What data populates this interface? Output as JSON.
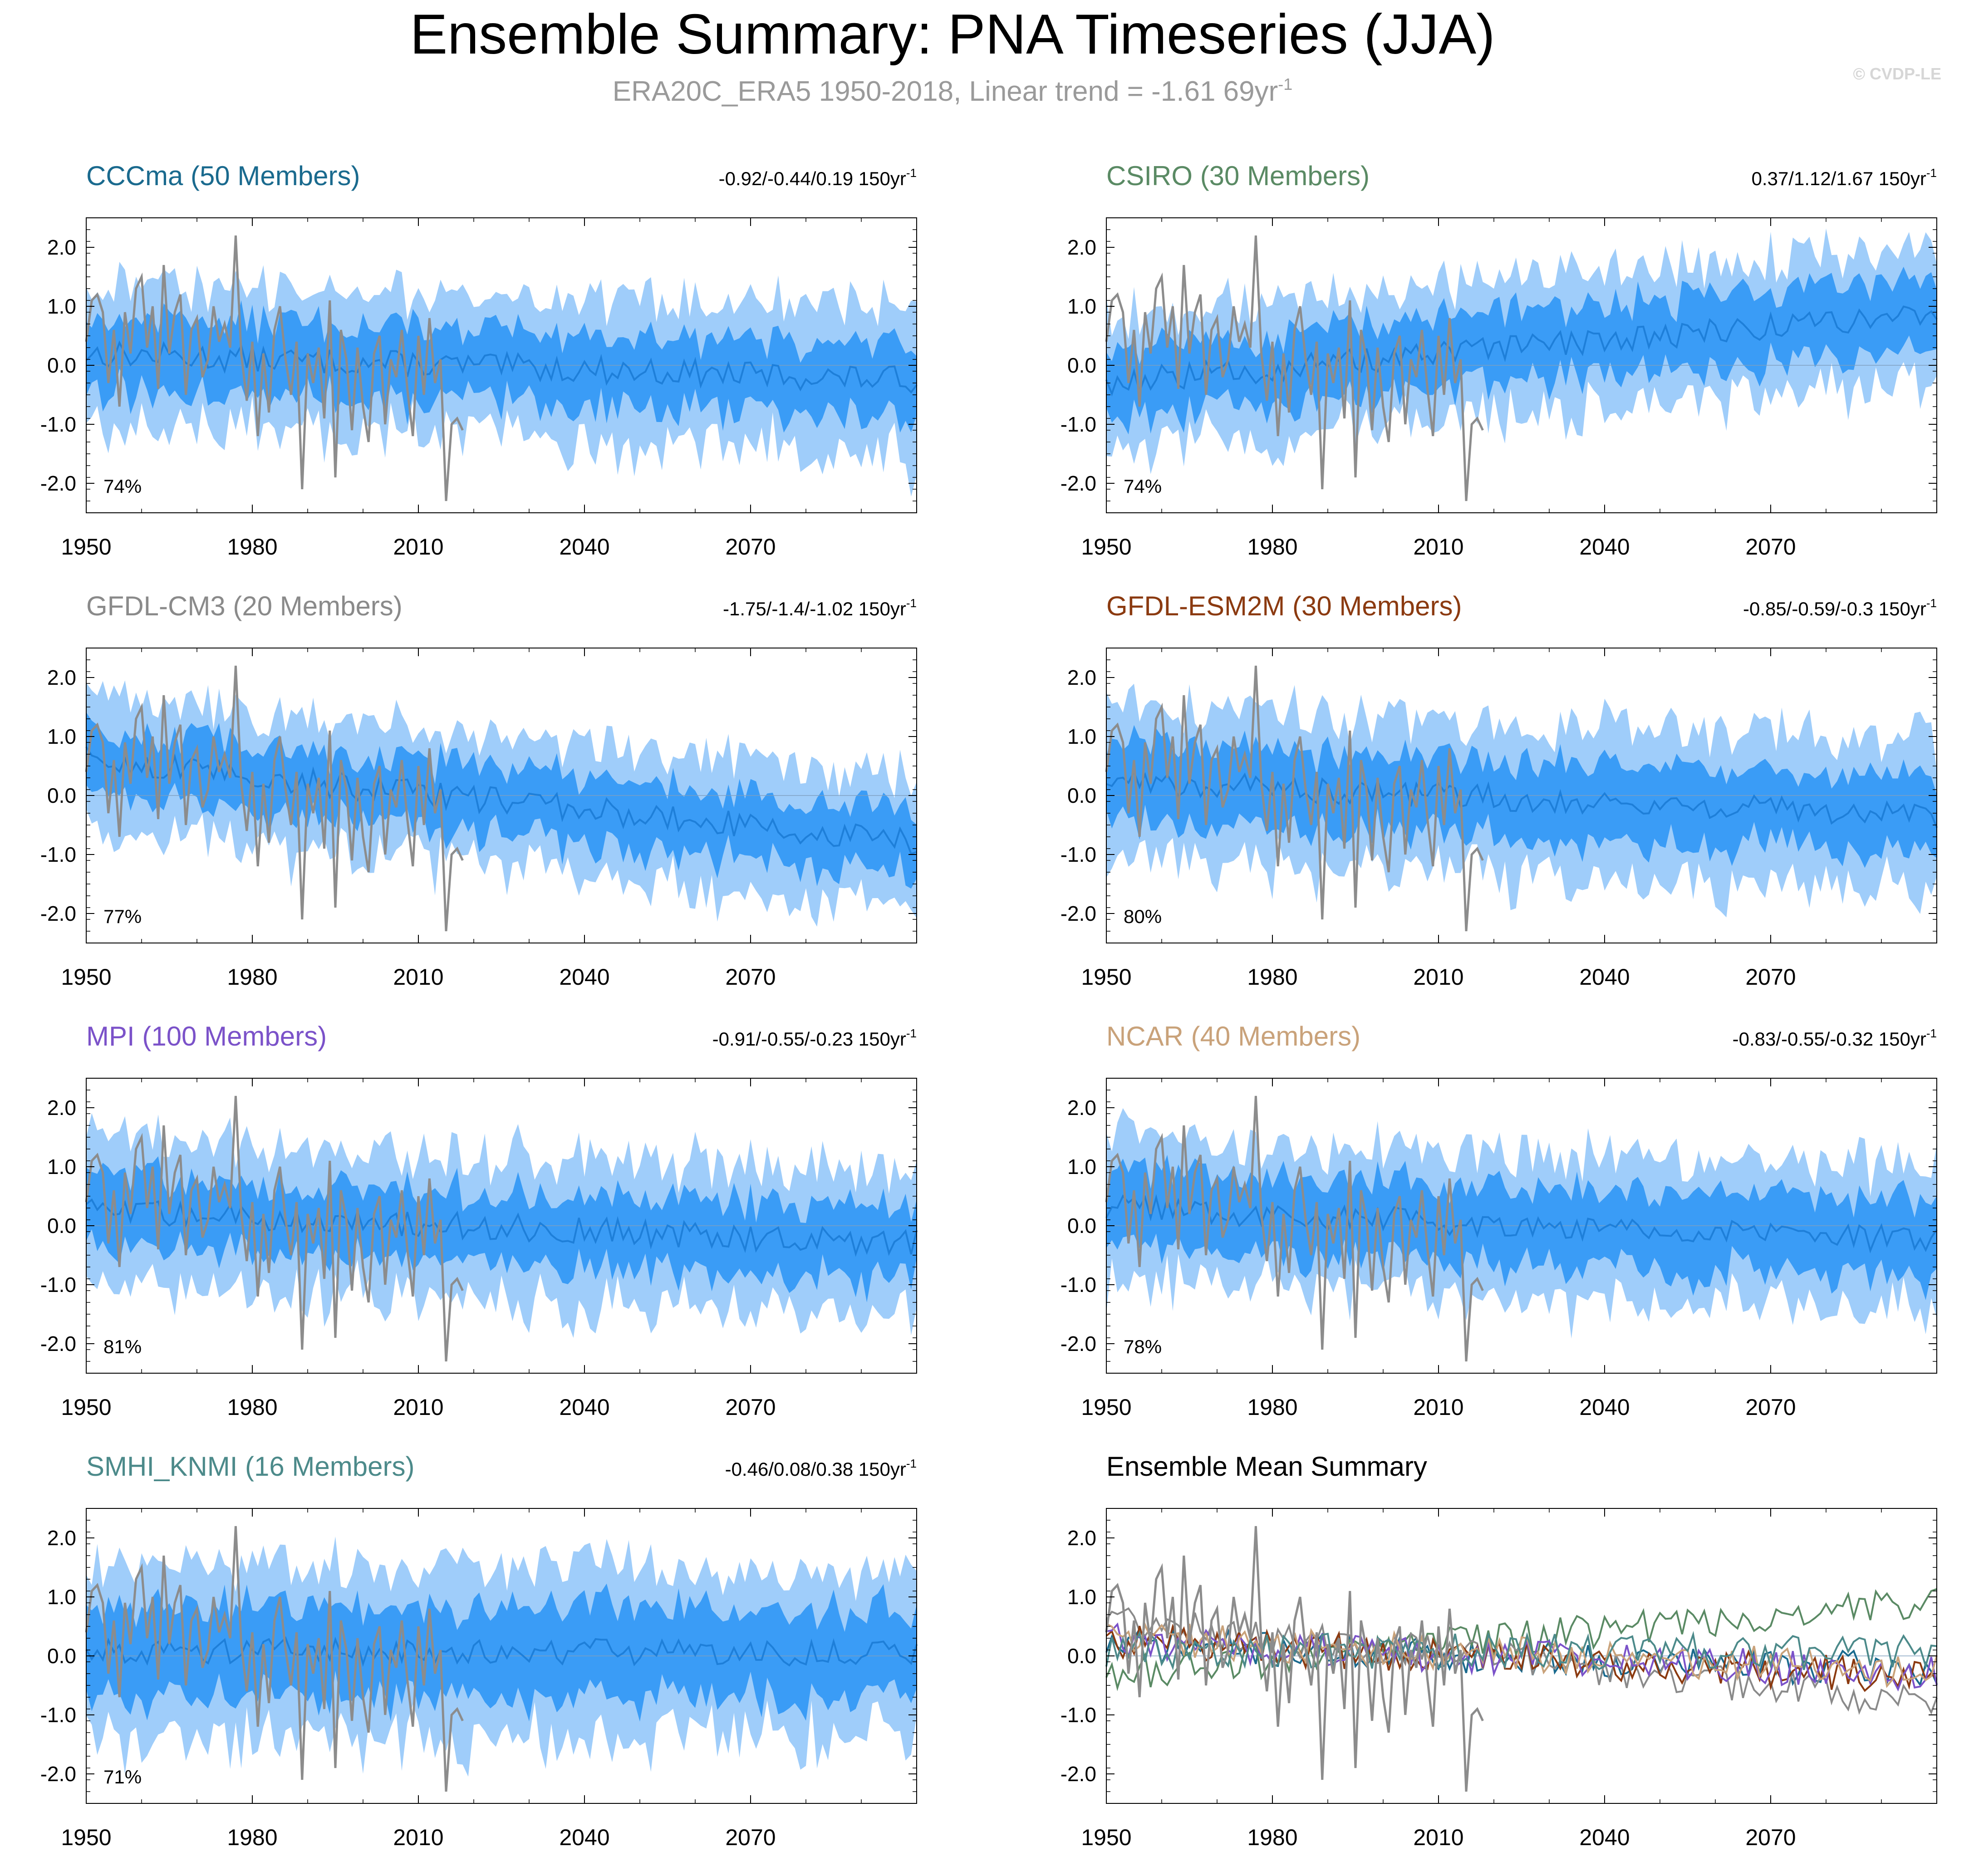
{
  "title": "Ensemble Summary: PNA Timeseries (JJA)",
  "subtitle": {
    "text": "ERA20C_ERA5 1950-2018, Linear trend = -1.61 69yr",
    "sup": "-1"
  },
  "watermark": "© CVDP-LE",
  "colors": {
    "band_outer": "#9fcdfa",
    "band_inner": "#3a9cf6",
    "mean_line": "#1e7fd9",
    "obs_line": "#8c8c8c",
    "zero_line": "#7f9fbf"
  },
  "chart_data": [
    {
      "type": "area",
      "id": "cccma",
      "title": "CCCma (50 Members)",
      "title_color": "#1a6a8e",
      "trend": "-0.92/-0.44/0.19 150yr",
      "trend_sup": "-1",
      "percent": "74%",
      "xlim": [
        1950,
        2100
      ],
      "ylim": [
        -2.5,
        2.5
      ],
      "xticks": [
        1950,
        1980,
        2010,
        2040,
        2070
      ],
      "yticks": [
        2.0,
        1.0,
        0.0,
        -1.0,
        -2.0
      ],
      "ensemble_mean_trend": [
        0.2,
        -0.25
      ],
      "inner_halfwidth": 0.6,
      "outer_halfwidth": 1.2
    },
    {
      "type": "area",
      "id": "csiro",
      "title": "CSIRO (30 Members)",
      "title_color": "#5a8a64",
      "trend": "0.37/1.12/1.67 150yr",
      "trend_sup": "-1",
      "percent": "74%",
      "xlim": [
        1950,
        2100
      ],
      "ylim": [
        -2.5,
        2.5
      ],
      "xticks": [
        1950,
        1980,
        2010,
        2040,
        2070
      ],
      "yticks": [
        2.0,
        1.0,
        0.0,
        -1.0,
        -2.0
      ],
      "ensemble_mean_trend": [
        -0.3,
        0.9
      ],
      "inner_halfwidth": 0.6,
      "outer_halfwidth": 1.1
    },
    {
      "type": "area",
      "id": "gfdl-cm3",
      "title": "GFDL-CM3 (20 Members)",
      "title_color": "#8a8a8a",
      "trend": "-1.75/-1.4/-1.02 150yr",
      "trend_sup": "-1",
      "percent": "77%",
      "xlim": [
        1950,
        2100
      ],
      "ylim": [
        -2.5,
        2.5
      ],
      "xticks": [
        1950,
        1980,
        2010,
        2040,
        2070
      ],
      "yticks": [
        2.0,
        1.0,
        0.0,
        -1.0,
        -2.0
      ],
      "ensemble_mean_trend": [
        0.6,
        -0.8
      ],
      "inner_halfwidth": 0.55,
      "outer_halfwidth": 1.1
    },
    {
      "type": "area",
      "id": "gfdl-esm2m",
      "title": "GFDL-ESM2M (30 Members)",
      "title_color": "#8b3a10",
      "trend": "-0.85/-0.59/-0.3 150yr",
      "trend_sup": "-1",
      "percent": "80%",
      "xlim": [
        1950,
        2100
      ],
      "ylim": [
        -2.5,
        2.5
      ],
      "xticks": [
        1950,
        1980,
        2010,
        2040,
        2070
      ],
      "yticks": [
        2.0,
        1.0,
        0.0,
        -1.0,
        -2.0
      ],
      "ensemble_mean_trend": [
        0.25,
        -0.35
      ],
      "inner_halfwidth": 0.65,
      "outer_halfwidth": 1.25
    },
    {
      "type": "area",
      "id": "mpi",
      "title": "MPI (100 Members)",
      "title_color": "#7b52c9",
      "trend": "-0.91/-0.55/-0.23 150yr",
      "trend_sup": "-1",
      "percent": "81%",
      "xlim": [
        1950,
        2100
      ],
      "ylim": [
        -2.5,
        2.5
      ],
      "xticks": [
        1950,
        1980,
        2010,
        2040,
        2070
      ],
      "yticks": [
        2.0,
        1.0,
        0.0,
        -1.0,
        -2.0
      ],
      "ensemble_mean_trend": [
        0.25,
        -0.3
      ],
      "inner_halfwidth": 0.6,
      "outer_halfwidth": 1.2
    },
    {
      "type": "area",
      "id": "ncar",
      "title": "NCAR (40 Members)",
      "title_color": "#c9a27a",
      "trend": "-0.83/-0.55/-0.32 150yr",
      "trend_sup": "-1",
      "percent": "78%",
      "xlim": [
        1950,
        2100
      ],
      "ylim": [
        -2.5,
        2.5
      ],
      "xticks": [
        1950,
        1980,
        2010,
        2040,
        2070
      ],
      "yticks": [
        2.0,
        1.0,
        0.0,
        -1.0,
        -2.0
      ],
      "ensemble_mean_trend": [
        0.3,
        -0.25
      ],
      "inner_halfwidth": 0.65,
      "outer_halfwidth": 1.2
    },
    {
      "type": "area",
      "id": "smhi-knmi",
      "title": "SMHI_KNMI (16 Members)",
      "title_color": "#4c8a8a",
      "trend": "-0.46/0.08/0.38 150yr",
      "trend_sup": "-1",
      "percent": "71%",
      "xlim": [
        1950,
        2100
      ],
      "ylim": [
        -2.5,
        2.5
      ],
      "xticks": [
        1950,
        1980,
        2010,
        2040,
        2070
      ],
      "yticks": [
        2.0,
        1.0,
        0.0,
        -1.0,
        -2.0
      ],
      "ensemble_mean_trend": [
        0.1,
        0.05
      ],
      "inner_halfwidth": 0.75,
      "outer_halfwidth": 1.4
    },
    {
      "type": "line",
      "id": "ensemble-mean-summary",
      "title": "Ensemble Mean Summary",
      "title_color": "#000000",
      "xlim": [
        1950,
        2100
      ],
      "ylim": [
        -2.5,
        2.5
      ],
      "xticks": [
        1950,
        1980,
        2010,
        2040,
        2070
      ],
      "yticks": [
        2.0,
        1.0,
        0.0,
        -1.0,
        -2.0
      ],
      "series": [
        {
          "name": "CCCma",
          "color": "#1a6a8e",
          "trend": [
            0.2,
            -0.25
          ]
        },
        {
          "name": "CSIRO",
          "color": "#5a8a64",
          "trend": [
            -0.3,
            0.9
          ]
        },
        {
          "name": "GFDL-CM3",
          "color": "#8a8a8a",
          "trend": [
            0.6,
            -0.8
          ]
        },
        {
          "name": "GFDL-ESM2M",
          "color": "#8b3a10",
          "trend": [
            0.25,
            -0.35
          ]
        },
        {
          "name": "MPI",
          "color": "#7b52c9",
          "trend": [
            0.25,
            -0.3
          ]
        },
        {
          "name": "NCAR",
          "color": "#c9a27a",
          "trend": [
            0.3,
            -0.25
          ]
        },
        {
          "name": "SMHI_KNMI",
          "color": "#4c8a8a",
          "trend": [
            0.1,
            0.05
          ]
        }
      ]
    }
  ],
  "observations": {
    "name": "ERA20C_ERA5",
    "years": [
      1950,
      2018
    ],
    "values": [
      0.4,
      1.1,
      1.2,
      0.9,
      -0.3,
      0.6,
      -0.7,
      0.9,
      0.2,
      1.3,
      1.5,
      0.3,
      1.0,
      -0.4,
      1.7,
      0.2,
      0.9,
      1.2,
      -0.5,
      0.6,
      0.8,
      -0.2,
      0.1,
      1.0,
      0.4,
      0.7,
      0.3,
      2.2,
      0.2,
      -0.6,
      0.4,
      -1.2,
      0.2,
      -0.8,
      0.6,
      1.0,
      0.1,
      -0.5,
      0.4,
      -2.1,
      0.2,
      -0.3,
      0.3,
      -0.9,
      1.1,
      -1.9,
      0.6,
      0.1,
      -1.1,
      0.3,
      -0.7,
      -1.3,
      0.2,
      0.5,
      -1.0,
      0.1,
      -0.2,
      0.6,
      -0.4,
      -1.2,
      0.5,
      -0.5,
      0.8,
      -0.3,
      0.1,
      -2.3,
      -1.0,
      -0.9,
      -1.1
    ]
  }
}
